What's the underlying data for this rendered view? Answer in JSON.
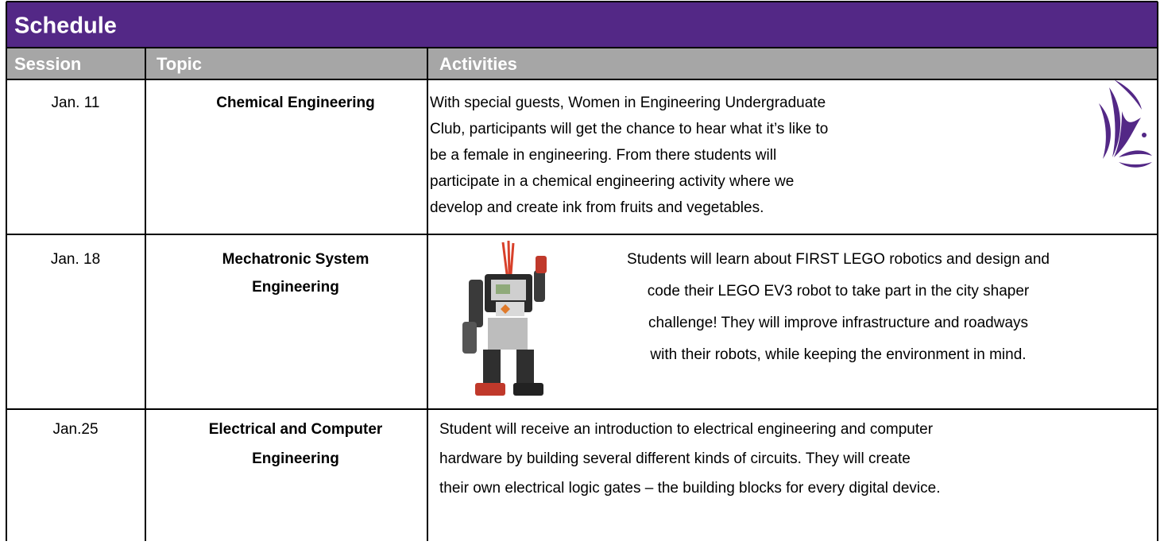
{
  "title": "Schedule",
  "header": [
    "Session",
    "Topic",
    "Activities"
  ],
  "rows": [
    {
      "session": "Jan. 11",
      "topic": [
        "Chemical Engineering"
      ],
      "activities": [
        "With special guests, Women in Engineering Undergraduate",
        "Club, participants will get the chance to hear what it’s like to",
        "be a female in engineering. From there students will",
        "participate in a chemical engineering activity where we",
        "develop and create ink from fruits and vegetables."
      ]
    },
    {
      "session": "Jan. 18",
      "topic": [
        "Mechatronic System",
        "Engineering"
      ],
      "activities": [
        "Students will learn about FIRST LEGO robotics and design and",
        "code their LEGO EV3 robot to take part in the city shaper",
        "challenge! They will improve infrastructure and roadways",
        "with their robots, while keeping the environment in mind."
      ]
    },
    {
      "session": "Jan.25",
      "topic": [
        "Electrical and Computer",
        "Engineering"
      ],
      "activities": [
        "Student will receive an introduction to electrical engineering and computer",
        "hardware by building several different kinds of circuits. They will create",
        "their own electrical logic gates – the building blocks for every digital device."
      ]
    }
  ]
}
